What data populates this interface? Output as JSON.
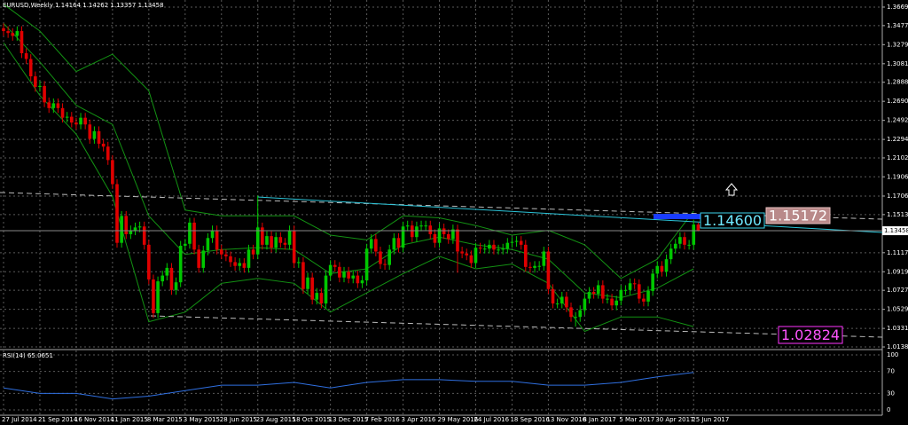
{
  "chart_data": {
    "type": "candlestick",
    "title": "EURUSD,Weekly  1.14164 1.14262 1.13357 1.13458",
    "categories": [
      "27 Jul 2014",
      null,
      null,
      null,
      null,
      null,
      null,
      null,
      "21 Sep 2014",
      null,
      null,
      null,
      null,
      null,
      null,
      null,
      "16 Nov 2014",
      null,
      null,
      null,
      null,
      null,
      null,
      null,
      "11 Jan 2015",
      null,
      null,
      null,
      null,
      null,
      null,
      null,
      "8 Mar 2015",
      null,
      null,
      null,
      null,
      null,
      null,
      null,
      "3 May 2015",
      null,
      null,
      null,
      null,
      null,
      null,
      null,
      "28 Jun 2015",
      null,
      null,
      null,
      null,
      null,
      null,
      null,
      "23 Aug 2015",
      null,
      null,
      null,
      null,
      null,
      null,
      null,
      "18 Oct 2015",
      null,
      null,
      null,
      null,
      null,
      null,
      null,
      "13 Dec 2015",
      null,
      null,
      null,
      null,
      null,
      null,
      null,
      "7 Feb 2016",
      null,
      null,
      null,
      null,
      null,
      null,
      null,
      "3 Apr 2016",
      null,
      null,
      null,
      null,
      null,
      null,
      null,
      "29 May 2016",
      null,
      null,
      null,
      null,
      null,
      null,
      null,
      "24 Jul 2016",
      null,
      null,
      null,
      null,
      null,
      null,
      null,
      "18 Sep 2016",
      null,
      null,
      null,
      null,
      null,
      null,
      null,
      "13 Nov 2016",
      null,
      null,
      null,
      null,
      null,
      null,
      null,
      "8 Jan 2017",
      null,
      null,
      null,
      null,
      null,
      null,
      null,
      "5 Mar 2017",
      null,
      null,
      null,
      null,
      null,
      null,
      null,
      "30 Apr 2017",
      null,
      null,
      null,
      null,
      null,
      null,
      null,
      "25 Jun 2017",
      null
    ],
    "open": [
      1.345,
      1.342,
      1.34,
      1.337,
      1.342,
      1.319,
      1.313,
      1.295,
      1.284,
      1.285,
      1.268,
      1.262,
      1.267,
      1.262,
      1.252,
      1.253,
      1.247,
      1.245,
      1.252,
      1.245,
      1.23,
      1.238,
      1.225,
      1.222,
      1.208,
      1.183,
      1.122,
      1.15,
      1.131,
      1.135,
      1.138,
      1.139,
      1.12,
      1.084,
      1.049,
      1.082,
      1.088,
      1.096,
      1.073,
      1.081,
      1.119,
      1.121,
      1.143,
      1.115,
      1.096,
      1.114,
      1.127,
      1.135,
      1.115,
      1.11,
      1.108,
      1.102,
      1.098,
      1.101,
      1.096,
      1.115,
      1.11,
      1.138,
      1.12,
      1.129,
      1.117,
      1.128,
      1.122,
      1.12,
      1.135,
      1.101,
      1.102,
      1.074,
      1.086,
      1.063,
      1.07,
      1.059,
      1.088,
      1.099,
      1.097,
      1.086,
      1.092,
      1.085,
      1.088,
      1.08,
      1.083,
      1.116,
      1.126,
      1.113,
      1.1,
      1.099,
      1.115,
      1.127,
      1.117,
      1.139,
      1.14,
      1.128,
      1.139,
      1.14,
      1.14,
      1.131,
      1.122,
      1.137,
      1.131,
      1.126,
      1.136,
      1.113,
      1.111,
      1.109,
      1.101,
      1.117,
      1.116,
      1.116,
      1.12,
      1.115,
      1.115,
      1.116,
      1.122,
      1.123,
      1.124,
      1.12,
      1.097,
      1.096,
      1.098,
      1.098,
      1.113,
      1.074,
      1.059,
      1.059,
      1.066,
      1.055,
      1.045,
      1.045,
      1.052,
      1.064,
      1.071,
      1.069,
      1.078,
      1.064,
      1.064,
      1.057,
      1.062,
      1.073,
      1.073,
      1.08,
      1.079,
      1.064,
      1.061,
      1.072,
      1.09,
      1.098,
      1.092,
      1.105,
      1.116,
      1.121,
      1.128,
      1.12,
      1.12,
      1.141
    ],
    "high": [
      1.35,
      1.347,
      1.345,
      1.347,
      1.347,
      1.324,
      1.318,
      1.3,
      1.29,
      1.29,
      1.273,
      1.272,
      1.272,
      1.267,
      1.258,
      1.258,
      1.252,
      1.257,
      1.257,
      1.25,
      1.243,
      1.243,
      1.23,
      1.227,
      1.213,
      1.188,
      1.155,
      1.155,
      1.14,
      1.143,
      1.144,
      1.144,
      1.125,
      1.089,
      1.087,
      1.093,
      1.101,
      1.101,
      1.086,
      1.124,
      1.126,
      1.148,
      1.148,
      1.12,
      1.119,
      1.132,
      1.14,
      1.14,
      1.12,
      1.115,
      1.113,
      1.107,
      1.106,
      1.106,
      1.12,
      1.12,
      1.171,
      1.143,
      1.134,
      1.134,
      1.133,
      1.133,
      1.127,
      1.14,
      1.14,
      1.107,
      1.107,
      1.091,
      1.091,
      1.075,
      1.075,
      1.093,
      1.104,
      1.104,
      1.102,
      1.097,
      1.097,
      1.093,
      1.093,
      1.088,
      1.121,
      1.131,
      1.131,
      1.118,
      1.105,
      1.12,
      1.132,
      1.132,
      1.144,
      1.145,
      1.145,
      1.144,
      1.145,
      1.145,
      1.145,
      1.136,
      1.142,
      1.142,
      1.136,
      1.141,
      1.141,
      1.118,
      1.116,
      1.114,
      1.122,
      1.122,
      1.121,
      1.125,
      1.125,
      1.12,
      1.121,
      1.127,
      1.128,
      1.129,
      1.129,
      1.125,
      1.102,
      1.103,
      1.103,
      1.118,
      1.118,
      1.079,
      1.064,
      1.071,
      1.071,
      1.06,
      1.05,
      1.057,
      1.069,
      1.076,
      1.076,
      1.083,
      1.083,
      1.069,
      1.069,
      1.067,
      1.078,
      1.078,
      1.085,
      1.085,
      1.084,
      1.069,
      1.077,
      1.095,
      1.103,
      1.103,
      1.11,
      1.121,
      1.126,
      1.133,
      1.133,
      1.125,
      1.146,
      1.143
    ],
    "low": [
      1.337,
      1.335,
      1.332,
      1.332,
      1.314,
      1.308,
      1.29,
      1.279,
      1.279,
      1.263,
      1.257,
      1.257,
      1.257,
      1.247,
      1.247,
      1.242,
      1.24,
      1.24,
      1.24,
      1.225,
      1.225,
      1.22,
      1.217,
      1.203,
      1.178,
      1.117,
      1.117,
      1.126,
      1.126,
      1.13,
      1.133,
      1.115,
      1.079,
      1.044,
      1.044,
      1.077,
      1.083,
      1.068,
      1.068,
      1.076,
      1.114,
      1.116,
      1.11,
      1.091,
      1.091,
      1.109,
      1.122,
      1.11,
      1.105,
      1.103,
      1.097,
      1.093,
      1.093,
      1.091,
      1.091,
      1.105,
      1.105,
      1.115,
      1.115,
      1.112,
      1.112,
      1.117,
      1.115,
      1.115,
      1.096,
      1.096,
      1.069,
      1.069,
      1.058,
      1.058,
      1.054,
      1.054,
      1.083,
      1.092,
      1.081,
      1.081,
      1.08,
      1.08,
      1.075,
      1.075,
      1.078,
      1.111,
      1.108,
      1.095,
      1.094,
      1.094,
      1.11,
      1.112,
      1.112,
      1.134,
      1.123,
      1.123,
      1.134,
      1.135,
      1.126,
      1.117,
      1.117,
      1.126,
      1.121,
      1.121,
      1.091,
      1.106,
      1.104,
      1.096,
      1.096,
      1.111,
      1.111,
      1.111,
      1.11,
      1.11,
      1.11,
      1.111,
      1.117,
      1.118,
      1.115,
      1.092,
      1.091,
      1.091,
      1.093,
      1.093,
      1.069,
      1.054,
      1.054,
      1.054,
      1.05,
      1.04,
      1.035,
      1.04,
      1.047,
      1.059,
      1.064,
      1.064,
      1.059,
      1.059,
      1.052,
      1.052,
      1.057,
      1.068,
      1.068,
      1.074,
      1.059,
      1.056,
      1.056,
      1.067,
      1.085,
      1.087,
      1.087,
      1.1,
      1.111,
      1.116,
      1.115,
      1.115,
      1.115,
      1.134
    ],
    "close": [
      1.342,
      1.34,
      1.337,
      1.342,
      1.319,
      1.313,
      1.295,
      1.284,
      1.285,
      1.268,
      1.262,
      1.267,
      1.262,
      1.252,
      1.253,
      1.247,
      1.245,
      1.252,
      1.245,
      1.23,
      1.238,
      1.225,
      1.222,
      1.208,
      1.183,
      1.122,
      1.15,
      1.131,
      1.135,
      1.138,
      1.139,
      1.12,
      1.084,
      1.049,
      1.082,
      1.088,
      1.096,
      1.073,
      1.081,
      1.119,
      1.121,
      1.143,
      1.115,
      1.096,
      1.114,
      1.127,
      1.135,
      1.115,
      1.11,
      1.108,
      1.102,
      1.098,
      1.101,
      1.096,
      1.115,
      1.11,
      1.138,
      1.12,
      1.129,
      1.117,
      1.128,
      1.122,
      1.12,
      1.135,
      1.101,
      1.102,
      1.074,
      1.086,
      1.063,
      1.07,
      1.059,
      1.088,
      1.099,
      1.097,
      1.086,
      1.092,
      1.085,
      1.088,
      1.08,
      1.083,
      1.116,
      1.126,
      1.113,
      1.1,
      1.099,
      1.115,
      1.127,
      1.117,
      1.139,
      1.14,
      1.128,
      1.139,
      1.14,
      1.14,
      1.131,
      1.122,
      1.137,
      1.131,
      1.126,
      1.136,
      1.113,
      1.111,
      1.109,
      1.101,
      1.117,
      1.116,
      1.116,
      1.12,
      1.115,
      1.115,
      1.116,
      1.122,
      1.123,
      1.124,
      1.12,
      1.097,
      1.096,
      1.098,
      1.098,
      1.113,
      1.074,
      1.059,
      1.059,
      1.066,
      1.055,
      1.045,
      1.045,
      1.052,
      1.064,
      1.071,
      1.069,
      1.078,
      1.064,
      1.064,
      1.057,
      1.062,
      1.073,
      1.073,
      1.08,
      1.079,
      1.064,
      1.061,
      1.072,
      1.09,
      1.098,
      1.092,
      1.105,
      1.116,
      1.121,
      1.128,
      1.12,
      1.12,
      1.141,
      1.135
    ],
    "up_color": "#00c800",
    "down_color": "#e00000",
    "ylim": [
      1.0111,
      1.3743
    ],
    "yticks": [
      1.36695,
      {
        "value": 1.3477,
        "label": "1.34770"
      },
      {
        "value": 1.3279,
        "label": "1.32790"
      },
      {
        "value": 1.3081,
        "label": "1.30810"
      },
      1.28885,
      1.26905,
      1.24925,
      1.22945,
      1.21025,
      {
        "value": 1.1906,
        "label": "1.19060"
      },
      {
        "value": 1.1706,
        "label": "1.17060"
      },
      1.15135,
      1.11175,
      1.09195,
      {
        "value": 1.0727,
        "label": "1.07270"
      },
      {
        "value": 1.0529,
        "label": "1.05290"
      },
      1.0331,
      1.01385
    ],
    "grid": true,
    "last_price": 1.13458,
    "band_x": [
      "27 Jul 2014",
      "21 Sep 2014",
      "16 Nov 2014",
      "11 Jan 2015",
      "8 Mar 2015",
      "3 May 2015",
      "28 Jun 2015",
      "23 Aug 2015",
      "18 Oct 2015",
      "13 Dec 2015",
      "7 Feb 2016",
      "3 Apr 2016",
      "29 May 2016",
      "24 Jul 2016",
      "18 Sep 2016",
      "13 Nov 2016",
      "8 Jan 2017",
      "5 Mar 2017",
      "30 Apr 2017",
      "25 Jun 2017"
    ],
    "bands": [
      {
        "color": "#139213",
        "values": [
          1.37,
          1.342,
          1.3,
          1.318,
          1.28,
          1.156,
          1.15,
          1.15,
          1.15,
          1.13,
          1.125,
          1.15,
          1.148,
          1.14,
          1.13,
          1.135,
          1.12,
          1.085,
          1.105,
          1.155
        ]
      },
      {
        "color": "#139213",
        "values": [
          1.35,
          1.31,
          1.265,
          1.245,
          1.15,
          1.11,
          1.115,
          1.117,
          1.115,
          1.09,
          1.095,
          1.12,
          1.128,
          1.12,
          1.115,
          1.105,
          1.07,
          1.065,
          1.075,
          1.095
        ]
      },
      {
        "color": "#139213",
        "values": [
          1.33,
          1.275,
          1.235,
          1.17,
          1.04,
          1.05,
          1.08,
          1.085,
          1.08,
          1.05,
          1.07,
          1.09,
          1.108,
          1.095,
          1.1,
          1.08,
          1.03,
          1.045,
          1.045,
          1.035
        ]
      }
    ],
    "annotations": [
      "1.14600",
      "1.15172",
      "1.02824"
    ],
    "rsi": {
      "title": "RSI(14) 65.0651",
      "color": "#2f6fe0",
      "values": [
        40,
        30,
        30,
        20,
        25,
        35,
        45,
        45,
        50,
        40,
        50,
        55,
        55,
        52,
        52,
        45,
        45,
        50,
        60,
        68
      ],
      "ylim": [
        0,
        100
      ],
      "yticks": [
        100,
        70,
        30,
        0
      ]
    }
  }
}
